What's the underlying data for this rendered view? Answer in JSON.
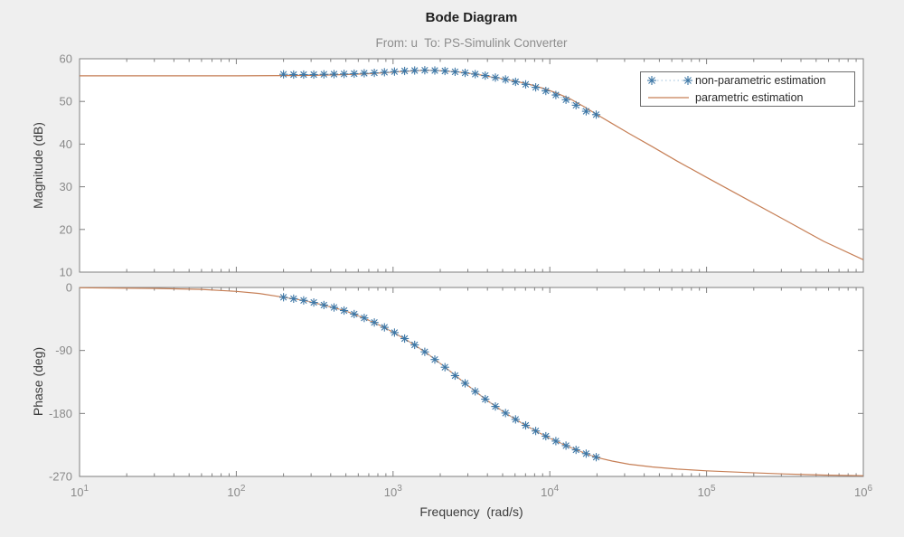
{
  "figure": {
    "title": "Bode Diagram",
    "subtitle": "From: u  To: PS-Simulink Converter",
    "colors": {
      "background": "#efefef",
      "plot_background": "#ffffff",
      "axis": "#7f7f7f",
      "tick_label": "#8a8a8a",
      "axis_label": "#3c3c3c",
      "title": "#1f1f1f",
      "subtitle": "#8d8d8d",
      "legend_border": "#6e6e6e",
      "legend_text": "#2b2b2b",
      "parametric_orange": "#c67f56",
      "marker_blue": "#3d77a6",
      "marker_connector": "#9dc0dc"
    }
  },
  "legend": {
    "entries": [
      {
        "label": "non-parametric estimation",
        "style": "asterisk-dotted"
      },
      {
        "label": "parametric estimation",
        "style": "solid-line"
      }
    ]
  },
  "chart_data": [
    {
      "type": "line",
      "title": "Bode Diagram",
      "subtitle": "From: u  To: PS-Simulink Converter",
      "ylabel": "Magnitude (dB)",
      "xlabel": "Frequency  (rad/s)",
      "xscale": "log",
      "xlim": [
        10,
        1000000
      ],
      "ylim": [
        10,
        60
      ],
      "yticks": [
        10,
        20,
        30,
        40,
        50,
        60
      ],
      "xticks": [
        10,
        100,
        1000,
        10000,
        100000,
        1000000
      ],
      "grid": false,
      "legend_position": "top-right",
      "series": [
        {
          "name": "parametric estimation",
          "style": "solid",
          "color": "#c67f56",
          "x": [
            10,
            100,
            200,
            300,
            500,
            700,
            900,
            1100,
            1300,
            1600,
            1900,
            2200,
            2600,
            3000,
            3600,
            4300,
            5200,
            6300,
            7600,
            9200,
            11000,
            13500,
            16500,
            20000,
            25000,
            32000,
            45000,
            65000,
            100000,
            180000,
            320000,
            560000,
            1000000
          ],
          "y": [
            56,
            56,
            56.05,
            56.1,
            56.3,
            56.5,
            56.75,
            57,
            57.15,
            57.3,
            57.25,
            57.1,
            56.9,
            56.6,
            56.2,
            55.7,
            55.2,
            54.6,
            53.9,
            53,
            52,
            50.6,
            48.8,
            46.9,
            44.8,
            42.5,
            39.4,
            36,
            32.2,
            27.1,
            22.1,
            17.2,
            12.9
          ]
        },
        {
          "name": "non-parametric estimation",
          "style": "asterisk-dotted",
          "color": "#3d77a6",
          "line_color": "#9dc0dc",
          "x": [
            200,
            232,
            269,
            312,
            362,
            420,
            487,
            565,
            655,
            760,
            881,
            1022,
            1185,
            1374,
            1594,
            1848,
            2144,
            2486,
            2883,
            3343,
            3877,
            4496,
            5214,
            6046,
            7012,
            8131,
            9429,
            10935,
            12680,
            14704,
            17052,
            19775
          ],
          "y": [
            56.35,
            56.3,
            56.3,
            56.3,
            56.35,
            56.4,
            56.45,
            56.5,
            56.6,
            56.7,
            56.85,
            57,
            57.15,
            57.25,
            57.3,
            57.25,
            57.15,
            56.95,
            56.7,
            56.4,
            56.05,
            55.6,
            55.15,
            54.6,
            54,
            53.3,
            52.45,
            51.5,
            50.4,
            49.1,
            47.7,
            46.9
          ]
        }
      ]
    },
    {
      "type": "line",
      "ylabel": "Phase (deg)",
      "xlabel": "Frequency  (rad/s)",
      "xscale": "log",
      "xlim": [
        10,
        1000000
      ],
      "ylim": [
        -270,
        0
      ],
      "yticks": [
        -270,
        -180,
        -90,
        0
      ],
      "xticks": [
        10,
        100,
        1000,
        10000,
        100000,
        1000000
      ],
      "grid": false,
      "series": [
        {
          "name": "parametric estimation",
          "style": "solid",
          "color": "#c67f56",
          "x": [
            10,
            30,
            60,
            100,
            140,
            200,
            270,
            360,
            490,
            650,
            880,
            1200,
            1600,
            2150,
            2900,
            3900,
            5200,
            7000,
            9400,
            12700,
            17000,
            20000,
            25000,
            32000,
            45000,
            65000,
            100000,
            180000,
            320000,
            560000,
            1000000
          ],
          "y": [
            -0.4,
            -1.3,
            -2.7,
            -5.5,
            -8.5,
            -14,
            -18.5,
            -25,
            -33,
            -43.5,
            -57,
            -74,
            -92,
            -114,
            -137.5,
            -160,
            -179.5,
            -197,
            -212.5,
            -226,
            -237.5,
            -243,
            -248,
            -252.5,
            -256.5,
            -259.5,
            -262,
            -264.5,
            -266.5,
            -268,
            -269
          ]
        },
        {
          "name": "non-parametric estimation",
          "style": "asterisk-dotted",
          "color": "#3d77a6",
          "line_color": "#9dc0dc",
          "x": [
            200,
            232,
            269,
            312,
            362,
            420,
            487,
            565,
            655,
            760,
            881,
            1022,
            1185,
            1374,
            1594,
            1848,
            2144,
            2486,
            2883,
            3343,
            3877,
            4496,
            5214,
            6046,
            7012,
            8131,
            9429,
            10935,
            12680,
            14704,
            17052,
            19775
          ],
          "y": [
            -14,
            -16,
            -18.5,
            -21.5,
            -25,
            -28.5,
            -33,
            -38,
            -43.5,
            -50,
            -57,
            -64.5,
            -73,
            -82,
            -92,
            -103,
            -114,
            -126,
            -137,
            -148.5,
            -159.5,
            -170,
            -179.5,
            -188.5,
            -197,
            -205,
            -212.5,
            -219.5,
            -226,
            -232,
            -237.5,
            -242.5
          ]
        }
      ]
    }
  ]
}
